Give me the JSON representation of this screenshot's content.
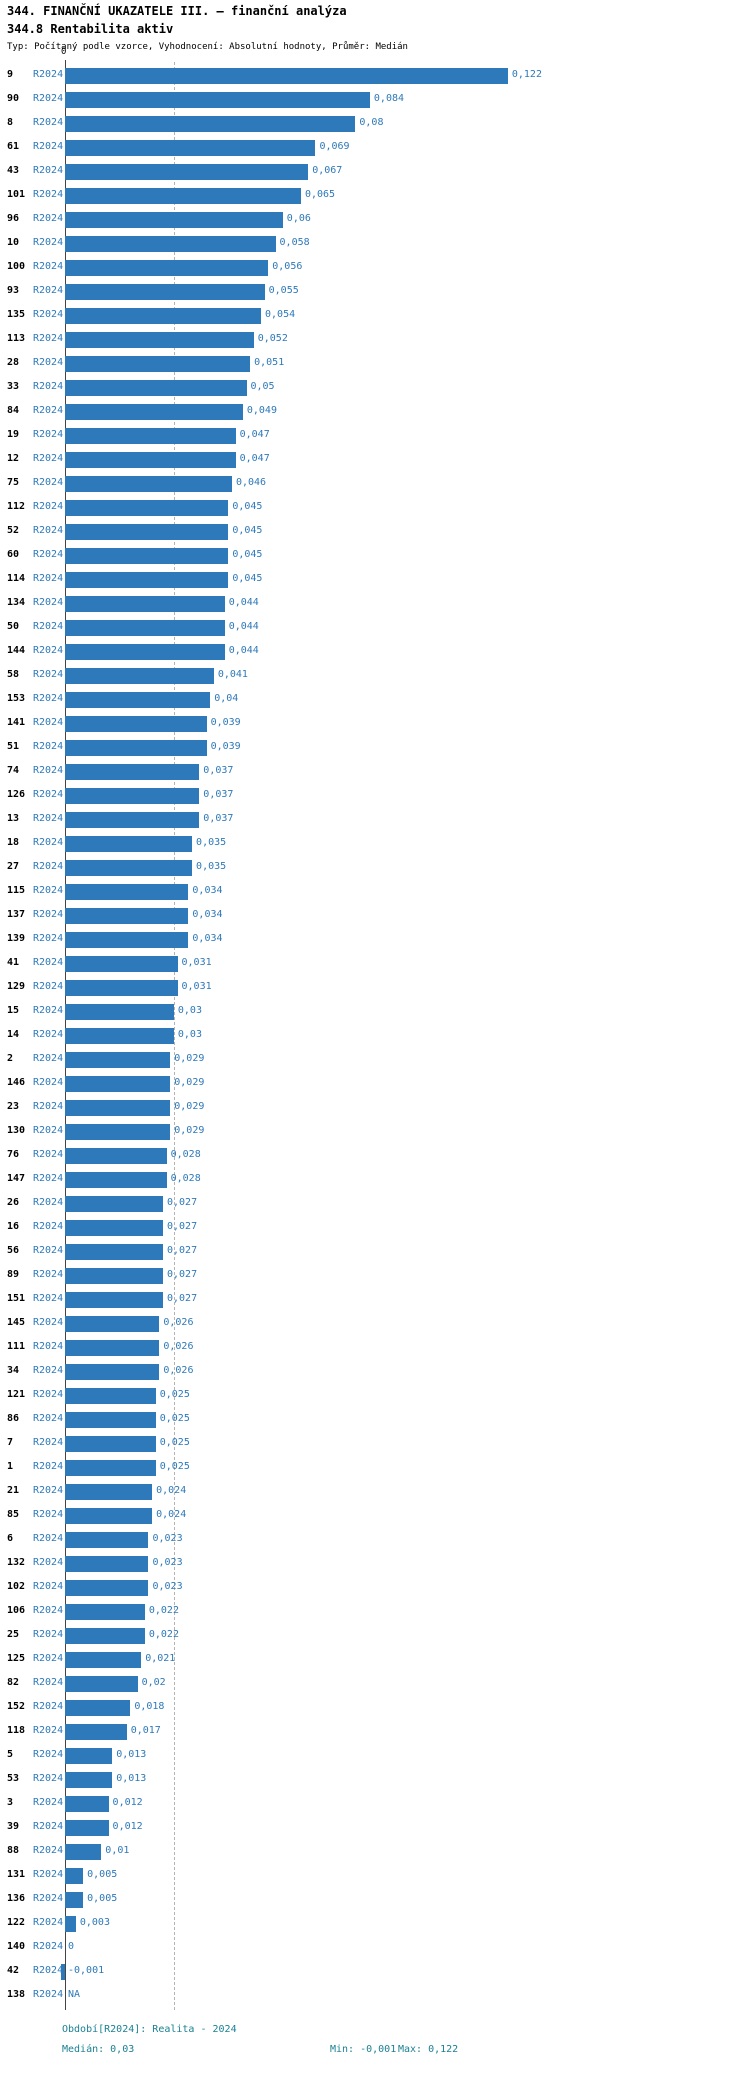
{
  "header": {
    "title": "344. FINANČNÍ UKAZATELE III. – finanční analýza",
    "subtitle": "344.8 Rentabilita aktiv",
    "meta": "Typ: Počítaný podle vzorce, Vyhodnocení: Absolutní hodnoty, Průměr: Medián"
  },
  "footer": {
    "period_line": "Období[R2024]: Realita - 2024",
    "median": "Medián: 0,03",
    "min": "Min: -0,001",
    "max": "Max: 0,122"
  },
  "colors": {
    "bar": "#2e79b9",
    "blue_label": "#2e79b9",
    "footer_text": "#1a8194",
    "axis": "#444444",
    "median_line": "#b3b3b3",
    "text": "#000000"
  },
  "chart_data": {
    "type": "bar",
    "orientation": "horizontal",
    "title": "344.8 Rentabilita aktiv",
    "series_label": "R2024",
    "axis_zero_label": "0",
    "xlim": [
      -0.005,
      0.135
    ],
    "median": 0.03,
    "min": -0.001,
    "max": 0.122,
    "grid": false,
    "rows": [
      {
        "id": "9",
        "value": 0.122,
        "label": "0,122"
      },
      {
        "id": "90",
        "value": 0.084,
        "label": "0,084"
      },
      {
        "id": "8",
        "value": 0.08,
        "label": "0,08"
      },
      {
        "id": "61",
        "value": 0.069,
        "label": "0,069"
      },
      {
        "id": "43",
        "value": 0.067,
        "label": "0,067"
      },
      {
        "id": "101",
        "value": 0.065,
        "label": "0,065"
      },
      {
        "id": "96",
        "value": 0.06,
        "label": "0,06"
      },
      {
        "id": "10",
        "value": 0.058,
        "label": "0,058"
      },
      {
        "id": "100",
        "value": 0.056,
        "label": "0,056"
      },
      {
        "id": "93",
        "value": 0.055,
        "label": "0,055"
      },
      {
        "id": "135",
        "value": 0.054,
        "label": "0,054"
      },
      {
        "id": "113",
        "value": 0.052,
        "label": "0,052"
      },
      {
        "id": "28",
        "value": 0.051,
        "label": "0,051"
      },
      {
        "id": "33",
        "value": 0.05,
        "label": "0,05"
      },
      {
        "id": "84",
        "value": 0.049,
        "label": "0,049"
      },
      {
        "id": "19",
        "value": 0.047,
        "label": "0,047"
      },
      {
        "id": "12",
        "value": 0.047,
        "label": "0,047"
      },
      {
        "id": "75",
        "value": 0.046,
        "label": "0,046"
      },
      {
        "id": "112",
        "value": 0.045,
        "label": "0,045"
      },
      {
        "id": "52",
        "value": 0.045,
        "label": "0,045"
      },
      {
        "id": "60",
        "value": 0.045,
        "label": "0,045"
      },
      {
        "id": "114",
        "value": 0.045,
        "label": "0,045"
      },
      {
        "id": "134",
        "value": 0.044,
        "label": "0,044"
      },
      {
        "id": "50",
        "value": 0.044,
        "label": "0,044"
      },
      {
        "id": "144",
        "value": 0.044,
        "label": "0,044"
      },
      {
        "id": "58",
        "value": 0.041,
        "label": "0,041"
      },
      {
        "id": "153",
        "value": 0.04,
        "label": "0,04"
      },
      {
        "id": "141",
        "value": 0.039,
        "label": "0,039"
      },
      {
        "id": "51",
        "value": 0.039,
        "label": "0,039"
      },
      {
        "id": "74",
        "value": 0.037,
        "label": "0,037"
      },
      {
        "id": "126",
        "value": 0.037,
        "label": "0,037"
      },
      {
        "id": "13",
        "value": 0.037,
        "label": "0,037"
      },
      {
        "id": "18",
        "value": 0.035,
        "label": "0,035"
      },
      {
        "id": "27",
        "value": 0.035,
        "label": "0,035"
      },
      {
        "id": "115",
        "value": 0.034,
        "label": "0,034"
      },
      {
        "id": "137",
        "value": 0.034,
        "label": "0,034"
      },
      {
        "id": "139",
        "value": 0.034,
        "label": "0,034"
      },
      {
        "id": "41",
        "value": 0.031,
        "label": "0,031"
      },
      {
        "id": "129",
        "value": 0.031,
        "label": "0,031"
      },
      {
        "id": "15",
        "value": 0.03,
        "label": "0,03"
      },
      {
        "id": "14",
        "value": 0.03,
        "label": "0,03"
      },
      {
        "id": "2",
        "value": 0.029,
        "label": "0,029"
      },
      {
        "id": "146",
        "value": 0.029,
        "label": "0,029"
      },
      {
        "id": "23",
        "value": 0.029,
        "label": "0,029"
      },
      {
        "id": "130",
        "value": 0.029,
        "label": "0,029"
      },
      {
        "id": "76",
        "value": 0.028,
        "label": "0,028"
      },
      {
        "id": "147",
        "value": 0.028,
        "label": "0,028"
      },
      {
        "id": "26",
        "value": 0.027,
        "label": "0,027"
      },
      {
        "id": "16",
        "value": 0.027,
        "label": "0,027"
      },
      {
        "id": "56",
        "value": 0.027,
        "label": "0,027"
      },
      {
        "id": "89",
        "value": 0.027,
        "label": "0,027"
      },
      {
        "id": "151",
        "value": 0.027,
        "label": "0,027"
      },
      {
        "id": "145",
        "value": 0.026,
        "label": "0,026"
      },
      {
        "id": "111",
        "value": 0.026,
        "label": "0,026"
      },
      {
        "id": "34",
        "value": 0.026,
        "label": "0,026"
      },
      {
        "id": "121",
        "value": 0.025,
        "label": "0,025"
      },
      {
        "id": "86",
        "value": 0.025,
        "label": "0,025"
      },
      {
        "id": "7",
        "value": 0.025,
        "label": "0,025"
      },
      {
        "id": "1",
        "value": 0.025,
        "label": "0,025"
      },
      {
        "id": "21",
        "value": 0.024,
        "label": "0,024"
      },
      {
        "id": "85",
        "value": 0.024,
        "label": "0,024"
      },
      {
        "id": "6",
        "value": 0.023,
        "label": "0,023"
      },
      {
        "id": "132",
        "value": 0.023,
        "label": "0,023"
      },
      {
        "id": "102",
        "value": 0.023,
        "label": "0,023"
      },
      {
        "id": "106",
        "value": 0.022,
        "label": "0,022"
      },
      {
        "id": "25",
        "value": 0.022,
        "label": "0,022"
      },
      {
        "id": "125",
        "value": 0.021,
        "label": "0,021"
      },
      {
        "id": "82",
        "value": 0.02,
        "label": "0,02"
      },
      {
        "id": "152",
        "value": 0.018,
        "label": "0,018"
      },
      {
        "id": "118",
        "value": 0.017,
        "label": "0,017"
      },
      {
        "id": "5",
        "value": 0.013,
        "label": "0,013"
      },
      {
        "id": "53",
        "value": 0.013,
        "label": "0,013"
      },
      {
        "id": "3",
        "value": 0.012,
        "label": "0,012"
      },
      {
        "id": "39",
        "value": 0.012,
        "label": "0,012"
      },
      {
        "id": "88",
        "value": 0.01,
        "label": "0,01"
      },
      {
        "id": "131",
        "value": 0.005,
        "label": "0,005"
      },
      {
        "id": "136",
        "value": 0.005,
        "label": "0,005"
      },
      {
        "id": "122",
        "value": 0.003,
        "label": "0,003"
      },
      {
        "id": "140",
        "value": 0,
        "label": "0"
      },
      {
        "id": "42",
        "value": -0.001,
        "label": "-0,001"
      },
      {
        "id": "138",
        "value": null,
        "label": "NA"
      }
    ]
  }
}
